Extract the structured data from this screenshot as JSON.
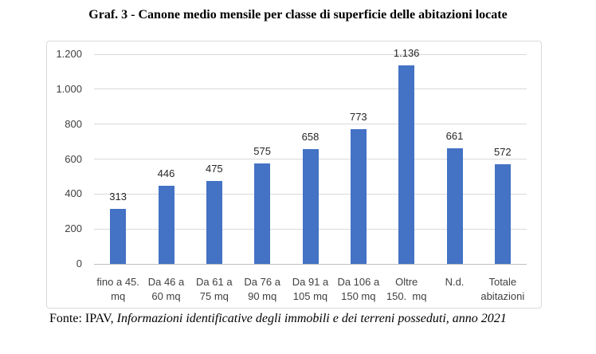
{
  "chart_data": {
    "type": "bar",
    "title": "Graf. 3 - Canone medio mensile per classe di superficie delle abitazioni locate",
    "categories": [
      "fino a 45.\nmq",
      "Da 46 a\n60 mq",
      "Da 61 a\n75 mq",
      "Da 76 a\n90 mq",
      "Da 91 a\n105 mq",
      "Da 106 a\n150 mq",
      "Oltre\n150.  mq",
      "N.d.",
      "Totale\nabitazioni"
    ],
    "values": [
      313,
      446,
      475,
      575,
      658,
      773,
      1136,
      661,
      572
    ],
    "value_labels": [
      "313",
      "446",
      "475",
      "575",
      "658",
      "773",
      "1.136",
      "661",
      "572"
    ],
    "xlabel": "",
    "ylabel": "",
    "ylim": [
      0,
      1200
    ],
    "y_ticks": [
      {
        "value": 1200,
        "label": "1.200"
      },
      {
        "value": 1000,
        "label": "1.000"
      },
      {
        "value": 800,
        "label": "800"
      },
      {
        "value": 600,
        "label": "600"
      },
      {
        "value": 400,
        "label": "400"
      },
      {
        "value": 200,
        "label": "200"
      },
      {
        "value": 0,
        "label": "0"
      }
    ],
    "grid": true,
    "legend": false
  },
  "source": {
    "prefix": "Fonte: IPAV, ",
    "citation_italic": "Informazioni identificative degli immobili e dei terreni posseduti, anno 2021"
  },
  "colors": {
    "bar": "#4472C4",
    "gridline": "#D9D9D9",
    "axis_line": "#BFBFBF",
    "frame_border": "#D9D9D9",
    "tick_text": "#404040",
    "value_text": "#262626",
    "title_text": "#000000"
  }
}
